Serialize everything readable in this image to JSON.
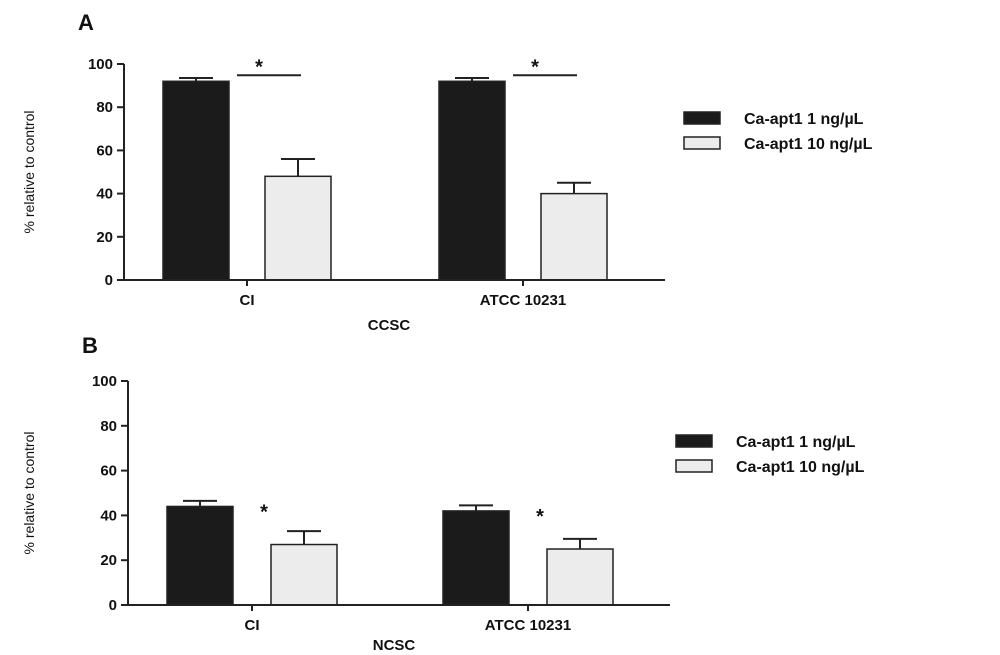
{
  "colors": {
    "series_1": "#1b1b1b",
    "series_2": "#ececec",
    "stroke": "#222222"
  },
  "chart_data": [
    {
      "type": "bar",
      "panel": "A",
      "xlabel": "CCSC",
      "ylabel": "% relative to control",
      "categories": [
        "CI",
        "ATCC 10231"
      ],
      "ylim": [
        0,
        100
      ],
      "yticks": [
        0,
        20,
        40,
        60,
        80,
        100
      ],
      "legend_placement": "right",
      "series": [
        {
          "name": "Ca-apt1 1 ng/µL",
          "values": [
            92,
            92
          ],
          "errors": [
            1.5,
            1.5
          ]
        },
        {
          "name": "Ca-apt1 10 ng/µL",
          "values": [
            48,
            40
          ],
          "errors": [
            8,
            5
          ]
        }
      ],
      "annotations": [
        {
          "text": "*",
          "category": "CI",
          "bracket": true
        },
        {
          "text": "*",
          "category": "ATCC 10231",
          "bracket": true
        }
      ]
    },
    {
      "type": "bar",
      "panel": "B",
      "xlabel": "NCSC",
      "ylabel": "% relative to control",
      "categories": [
        "CI",
        "ATCC 10231"
      ],
      "ylim": [
        0,
        100
      ],
      "yticks": [
        0,
        20,
        40,
        60,
        80,
        100
      ],
      "legend_placement": "right",
      "series": [
        {
          "name": "Ca-apt1 1 ng/µL",
          "values": [
            44,
            42
          ],
          "errors": [
            2.5,
            2.5
          ]
        },
        {
          "name": "Ca-apt1 10 ng/µL",
          "values": [
            27,
            25
          ],
          "errors": [
            6,
            4.5
          ]
        }
      ],
      "annotations": [
        {
          "text": "*",
          "category": "CI",
          "bracket": false
        },
        {
          "text": "*",
          "category": "ATCC 10231",
          "bracket": false
        }
      ]
    }
  ]
}
